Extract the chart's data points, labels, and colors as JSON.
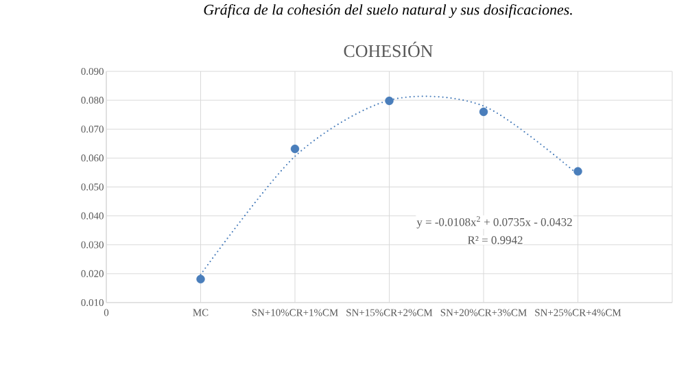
{
  "chart_data": {
    "type": "scatter",
    "title": "COHESIÓN",
    "annotations": [
      "*Gráfica de la cohesión del suelo natural y sus dosificaciones.*",
      "y = -0.0108x$^{2}$ + 0.0735x - 0.0432",
      "R² = 0.9942",
      "0"
    ],
    "categories": [
      "MC",
      "SN+10%CR+1%CM",
      "SN+15%CR+2%CM",
      "SN+20%CR+3%CM",
      "SN+25%CR+4%CM"
    ],
    "ylim": [
      0.01,
      0.09
    ],
    "yticks": [
      {
        "value": 0.01,
        "label": "0.010"
      },
      {
        "value": 0.02,
        "label": "0.020"
      },
      {
        "value": 0.03,
        "label": "0.030"
      },
      {
        "value": 0.04,
        "label": "0.040"
      },
      {
        "value": 0.05,
        "label": "0.050"
      },
      {
        "value": 0.06,
        "label": "0.060"
      },
      {
        "value": 0.07,
        "label": "0.070"
      },
      {
        "value": 0.08,
        "label": "0.080"
      },
      {
        "value": 0.09,
        "label": "0.090"
      }
    ],
    "grid": true,
    "legend": false,
    "series": [
      {
        "color": "#4a7ebb",
        "marker": "circle",
        "values": [
          0.0181,
          0.0632,
          0.0798,
          0.076,
          0.0554
        ]
      },
      {
        "type": "line",
        "color": "#4a7ebb",
        "line_style": "dotted",
        "marker": "none",
        "values": [
          0.0197,
          0.0606,
          0.08,
          0.078,
          0.0543
        ]
      }
    ]
  }
}
